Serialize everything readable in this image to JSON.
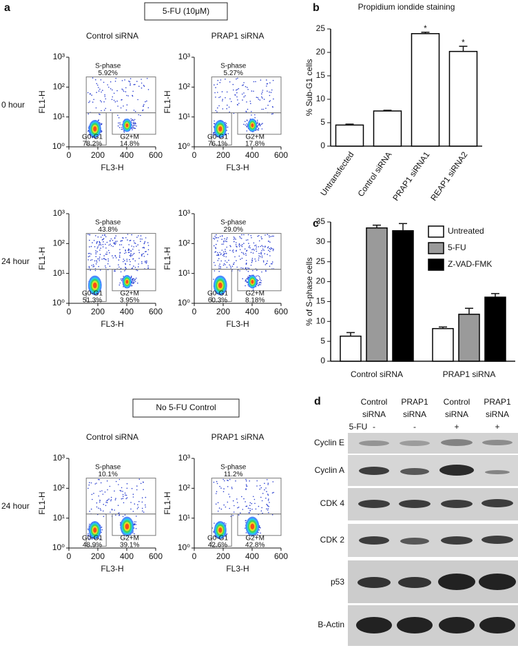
{
  "panel_labels": {
    "a": "a",
    "b": "b",
    "c": "c",
    "d": "d"
  },
  "flow": {
    "treated_header": "5-FU (10μM)",
    "control_header": "No 5-FU Control",
    "x_label": "FL3-H",
    "y_label": "FL1-H",
    "xlim": [
      0,
      600
    ],
    "xticks": [
      0,
      200,
      400,
      600
    ],
    "ylim": [
      1,
      1000
    ],
    "log_y": true,
    "yticks": [
      {
        "value": 1,
        "label": "10⁰"
      },
      {
        "value": 10,
        "label": "10¹"
      },
      {
        "value": 100,
        "label": "10²"
      },
      {
        "value": 1000,
        "label": "10³"
      }
    ],
    "rows": [
      {
        "label": "0 hour",
        "columns": [
          "Control siRNA",
          "PRAP1 siRNA"
        ],
        "plots": [
          {
            "s_phase": "S-phase",
            "s_value": "5.92%",
            "g0g1": "G0-G1",
            "g0g1_value": "78.2%",
            "g2m": "G2+M",
            "g2m_value": "14.8%"
          },
          {
            "s_phase": "S-phase",
            "s_value": "5.27%",
            "g0g1": "G0-G1",
            "g0g1_value": "76.1%",
            "g2m": "G2+M",
            "g2m_value": "17.8%"
          }
        ]
      },
      {
        "label": "24 hour",
        "plots": [
          {
            "s_phase": "S-phase",
            "s_value": "43.8%",
            "g0g1": "G0-G1",
            "g0g1_value": "51.3%",
            "g2m": "G2+M",
            "g2m_value": "3.95%"
          },
          {
            "s_phase": "S-phase",
            "s_value": "29.0%",
            "g0g1": "G0-G1",
            "g0g1_value": "60.3%",
            "g2m": "G2+M",
            "g2m_value": "8.18%"
          }
        ]
      },
      {
        "label": "24 hour",
        "columns": [
          "Control siRNA",
          "PRAP1 siRNA"
        ],
        "plots": [
          {
            "s_phase": "S-phase",
            "s_value": "10.1%",
            "g0g1": "G0-G1",
            "g0g1_value": "48.9%",
            "g2m": "G2+M",
            "g2m_value": "39.1%"
          },
          {
            "s_phase": "S-phase",
            "s_value": "11.2%",
            "g0g1": "G0-G1",
            "g0g1_value": "42.6%",
            "g2m": "G2+M",
            "g2m_value": "42.8%"
          }
        ]
      }
    ]
  },
  "chart_data": [
    {
      "type": "bar",
      "title": "Propidium iondide staining",
      "y_label": "% Sub-G1 cells",
      "categories": [
        "Untransfected",
        "Control siRNA",
        "PRAP1 siRNA1",
        "REAP1 siRNA2"
      ],
      "values": [
        4.5,
        7.5,
        24,
        20.2
      ],
      "errors": [
        0.2,
        0.15,
        0.3,
        1.1
      ],
      "annotations": [
        {
          "index": 2,
          "text": "*"
        },
        {
          "index": 3,
          "text": "*"
        }
      ],
      "color": "#ffffff",
      "edge_color": "#000000",
      "ylim": [
        0,
        25
      ],
      "yticks": [
        0,
        5,
        10,
        15,
        20,
        25
      ]
    },
    {
      "type": "grouped_bar",
      "y_label": "% of S-phase cells",
      "categories": [
        "Control  siRNA",
        "PRAP1 siRNA"
      ],
      "series": [
        {
          "name": "Untreated",
          "color": "#ffffff",
          "values": [
            6.3,
            8.2
          ],
          "errors": [
            0.9,
            0.4
          ]
        },
        {
          "name": "5-FU",
          "color": "#9a9a9a",
          "values": [
            33.5,
            11.8
          ],
          "errors": [
            0.7,
            1.5
          ]
        },
        {
          "name": "Z-VAD-FMK",
          "color": "#000000",
          "values": [
            32.8,
            16.1
          ],
          "errors": [
            1.8,
            0.9
          ]
        }
      ],
      "edge_color": "#000000",
      "legend": "upper-right",
      "ylim": [
        0,
        35
      ],
      "yticks": [
        0,
        5,
        10,
        15,
        20,
        25,
        30,
        35
      ]
    }
  ],
  "western_blot": {
    "columns": [
      [
        "Control",
        "siRNA"
      ],
      [
        "PRAP1",
        "siRNA"
      ],
      [
        "Control",
        "siRNA"
      ],
      [
        "PRAP1",
        "siRNA"
      ]
    ],
    "treatment": "5-FU",
    "treatment_signs": [
      "-",
      "-",
      "+",
      "+"
    ],
    "rows": [
      "Cyclin E",
      "Cyclin A",
      "CDK 4",
      "CDK 2",
      "p53",
      "B-Actin"
    ]
  }
}
